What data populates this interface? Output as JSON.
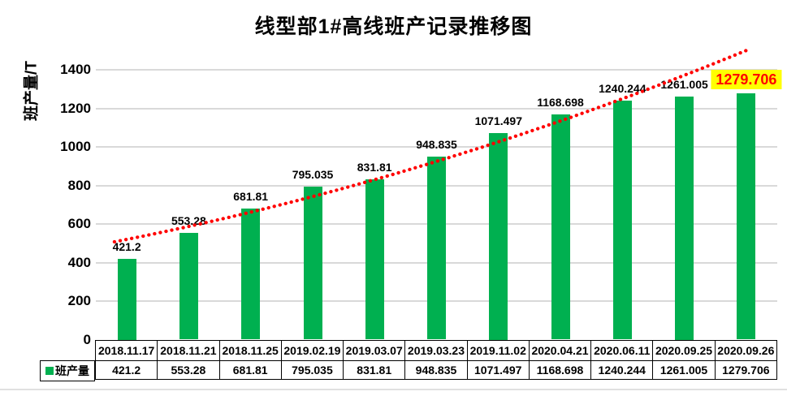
{
  "title": "线型部1#高线班产记录推移图",
  "y_axis": {
    "label": "班产量/T"
  },
  "legend": {
    "label": "班产量",
    "color": "#00B050"
  },
  "colors": {
    "bar": "#00B050",
    "trend": "#FF0000",
    "grid": "#D9D9D9",
    "highlight_bg": "#FFFF00",
    "highlight_text": "#FF0000",
    "label_text": "#000000"
  },
  "chart_data": {
    "type": "bar",
    "title": "线型部1#高线班产记录推移图",
    "xlabel": "",
    "ylabel": "班产量/T",
    "categories": [
      "2018.11.17",
      "2018.11.21",
      "2018.11.25",
      "2019.02.19",
      "2019.03.07",
      "2019.03.23",
      "2019.11.02",
      "2020.04.21",
      "2020.06.11",
      "2020.09.25",
      "2020.09.26"
    ],
    "series": [
      {
        "name": "班产量",
        "color": "#00B050",
        "values": [
          421.2,
          553.28,
          681.81,
          795.035,
          831.81,
          948.835,
          1071.497,
          1168.698,
          1240.244,
          1261.005,
          1279.706
        ]
      }
    ],
    "data_labels": [
      "421.2",
      "553.28",
      "681.81",
      "795.035",
      "831.81",
      "948.835",
      "1071.497",
      "1168.698",
      "1240.244",
      "1261.005",
      "1279.706"
    ],
    "ylim": [
      0,
      1500
    ],
    "yticks": [
      0,
      200,
      400,
      600,
      800,
      1000,
      1200,
      1400
    ],
    "grid": true,
    "legend_position": "bottom-table",
    "trendline": {
      "type": "quadratic",
      "style": "dotted",
      "color": "#FF0000",
      "coeffs": {
        "a": 459.6,
        "b": 57.0,
        "c": 3.42
      },
      "index_range": [
        0.8,
        11.0
      ]
    },
    "highlight": {
      "index": 10,
      "value": "1279.706",
      "background": "#FFFF00",
      "text_color": "#FF0000"
    }
  },
  "table": {
    "legend_label": "班产量",
    "dates_row": [
      "2018.11.17",
      "2018.11.21",
      "2018.11.25",
      "2019.02.19",
      "2019.03.07",
      "2019.03.23",
      "2019.11.02",
      "2020.04.21",
      "2020.06.11",
      "2020.09.25",
      "2020.09.26"
    ],
    "values_row": [
      "421.2",
      "553.28",
      "681.81",
      "795.035",
      "831.81",
      "948.835",
      "1071.497",
      "1168.698",
      "1240.244",
      "1261.005",
      "1279.706"
    ]
  }
}
